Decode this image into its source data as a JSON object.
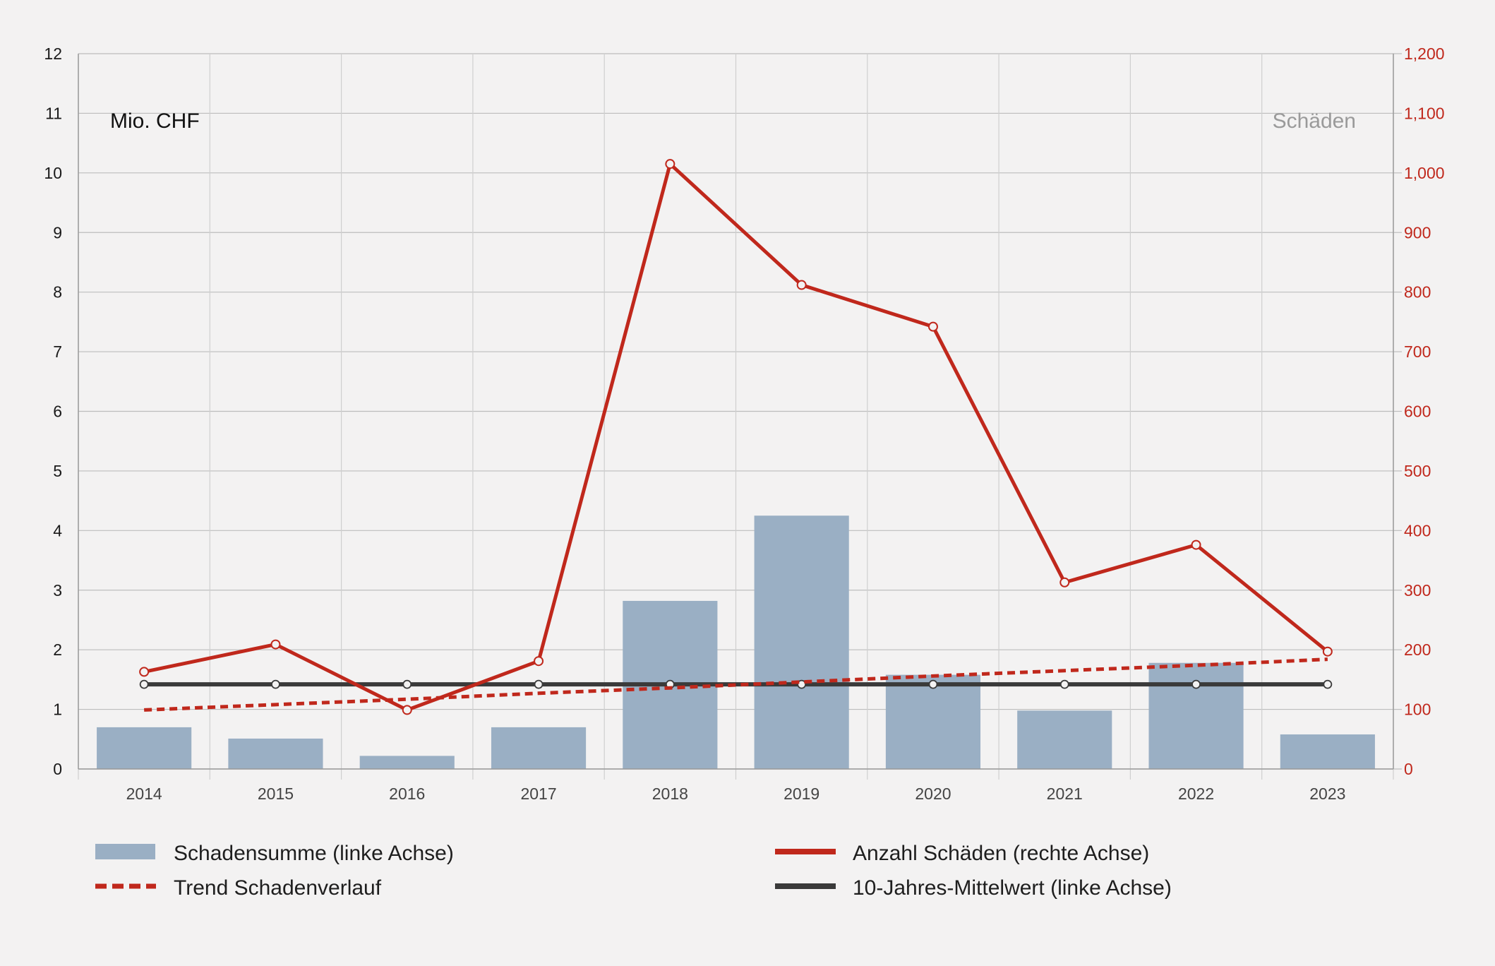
{
  "chart_data": {
    "type": "bar",
    "categories": [
      "2014",
      "2015",
      "2016",
      "2017",
      "2018",
      "2019",
      "2020",
      "2021",
      "2022",
      "2023"
    ],
    "units": {
      "left": "Mio. CHF",
      "right": "Schäden"
    },
    "y_left": {
      "ylim": [
        0,
        12
      ],
      "ticks": [
        "0",
        "1",
        "2",
        "3",
        "4",
        "5",
        "6",
        "7",
        "8",
        "9",
        "10",
        "11",
        "12"
      ]
    },
    "y_right": {
      "ylim": [
        0,
        1200
      ],
      "ticks": [
        "0",
        "100",
        "200",
        "300",
        "400",
        "500",
        "600",
        "700",
        "800",
        "900",
        "1,000",
        "1,100",
        "1,200"
      ]
    },
    "grid": true,
    "legend_position": "bottom",
    "series": [
      {
        "name": "Schadensumme (linke Achse)",
        "type": "bar",
        "axis": "left",
        "color": "#9aafc4",
        "values": [
          0.7,
          0.51,
          0.22,
          0.7,
          2.82,
          4.25,
          1.58,
          0.98,
          1.78,
          0.58
        ]
      },
      {
        "name": "Anzahl Schäden (rechte Achse)",
        "type": "line",
        "axis": "right",
        "color": "#c0281c",
        "values": [
          163,
          209,
          99,
          181,
          1015,
          812,
          742,
          313,
          376,
          197
        ]
      },
      {
        "name": "Trend Schadenverlauf",
        "type": "line",
        "style": "dashed",
        "axis": "left",
        "color": "#c0281c",
        "values": [
          0.99,
          1.08,
          1.17,
          1.27,
          1.36,
          1.46,
          1.56,
          1.65,
          1.74,
          1.84
        ]
      },
      {
        "name": "10-Jahres-Mittelwert (linke Achse)",
        "type": "line",
        "axis": "left",
        "color": "#3a3a3a",
        "values": [
          1.42,
          1.42,
          1.42,
          1.42,
          1.42,
          1.42,
          1.42,
          1.42,
          1.42,
          1.42
        ]
      }
    ]
  }
}
